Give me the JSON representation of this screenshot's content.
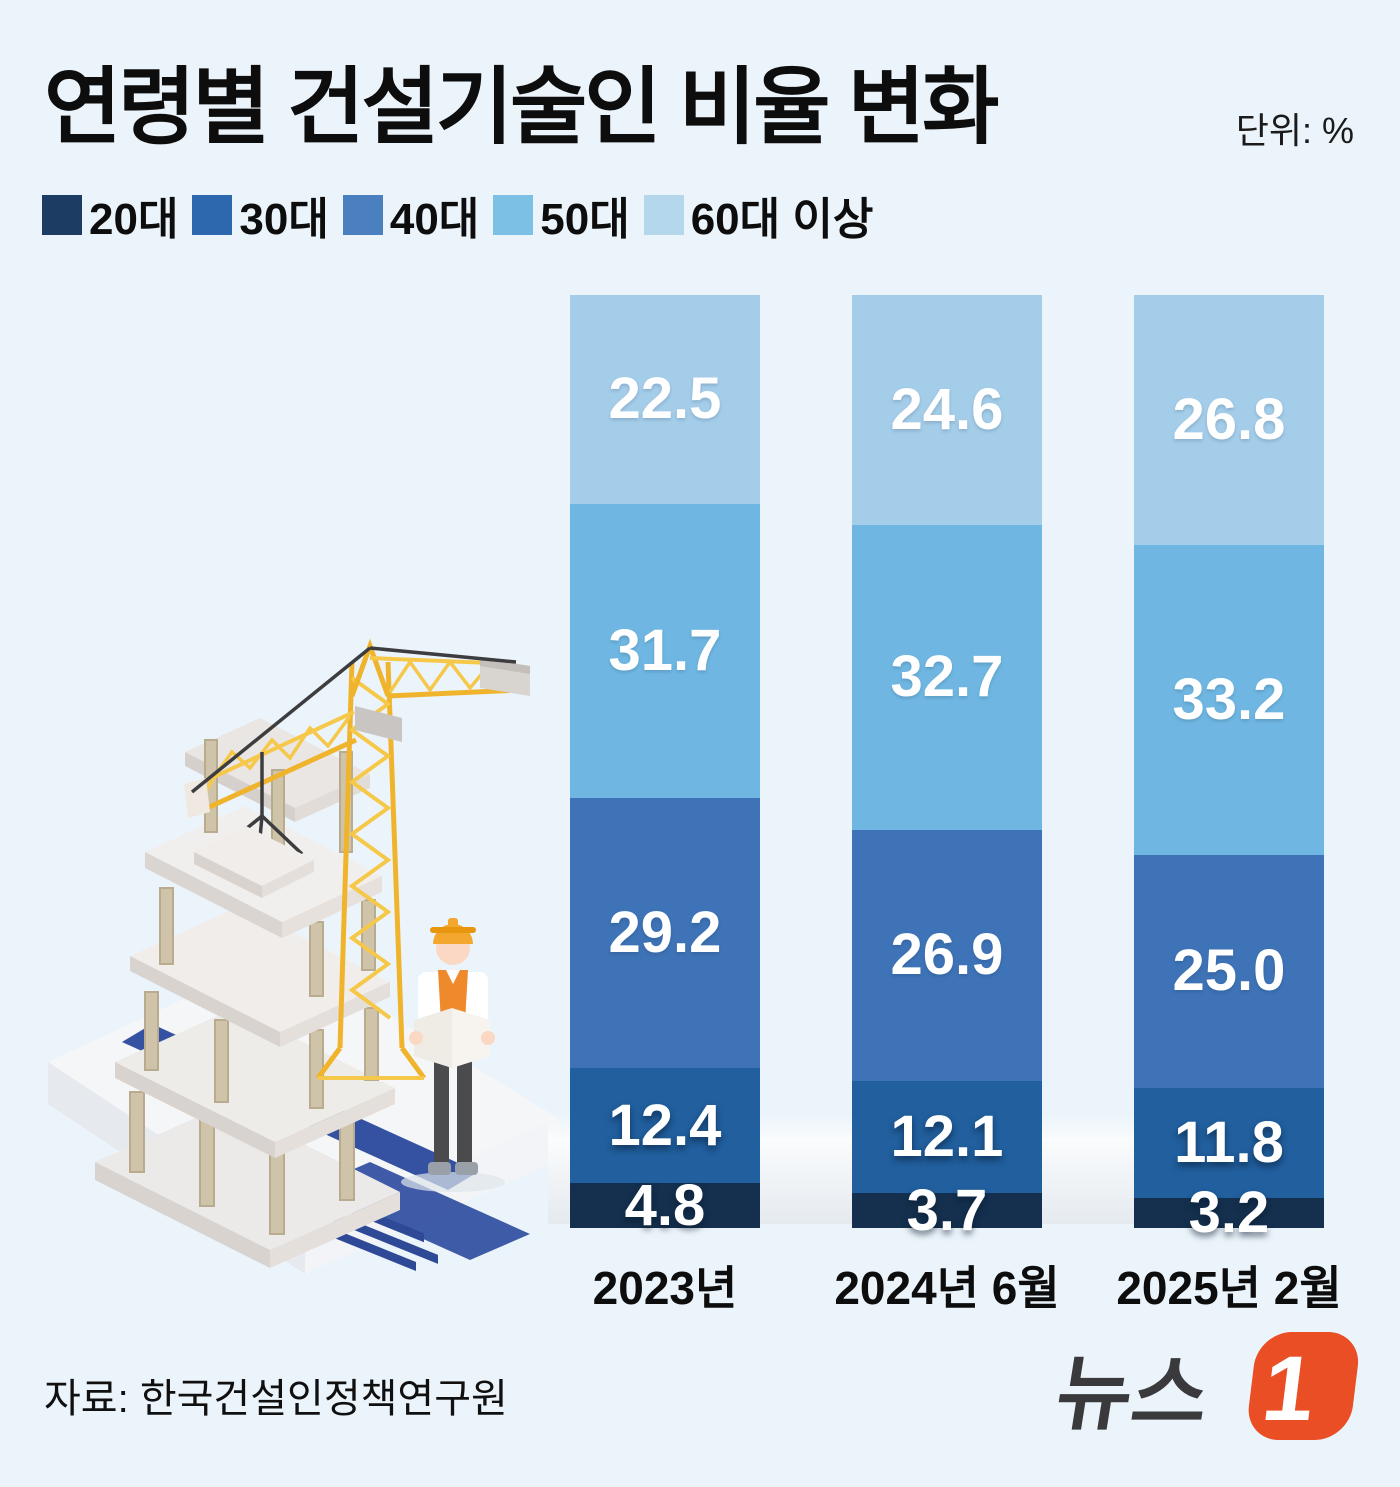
{
  "page": {
    "background": "#ecf4fb"
  },
  "header": {
    "title": "연령별 건설기술인 비율 변화",
    "unit_label": "단위: %"
  },
  "chart_data": {
    "type": "bar",
    "stacked": true,
    "orientation": "vertical",
    "unit": "%",
    "title": "연령별 건설기술인 비율 변화",
    "categories": [
      "2023년",
      "2024년 6월",
      "2025년 2월"
    ],
    "series": [
      {
        "name": "20대",
        "color": "#14304e",
        "legend_color": "#1d3c63",
        "values": [
          4.8,
          3.7,
          3.2
        ]
      },
      {
        "name": "30대",
        "color": "#215f9e",
        "legend_color": "#2d68ae",
        "values": [
          12.4,
          12.1,
          11.8
        ]
      },
      {
        "name": "40대",
        "color": "#3e73b7",
        "legend_color": "#4a7fc0",
        "values": [
          29.2,
          26.9,
          25.0
        ]
      },
      {
        "name": "50대",
        "color": "#6fb7e2",
        "legend_color": "#7cc0e6",
        "values": [
          31.7,
          32.7,
          33.2
        ]
      },
      {
        "name": "60대 이상",
        "color": "#a4cde9",
        "legend_color": "#b5d7ee",
        "values": [
          22.5,
          24.6,
          26.8
        ]
      }
    ],
    "ylim": [
      0,
      100
    ],
    "axis": "none",
    "grid": false,
    "legend_position": "top-left",
    "value_labels": "one_decimal_white_inside"
  },
  "footer": {
    "source": "자료: 한국건설인정책연구원",
    "logo": {
      "wordmark": "뉴스",
      "one": "1",
      "orange": "#e94e25",
      "text_color": "#3a3a3c"
    }
  }
}
